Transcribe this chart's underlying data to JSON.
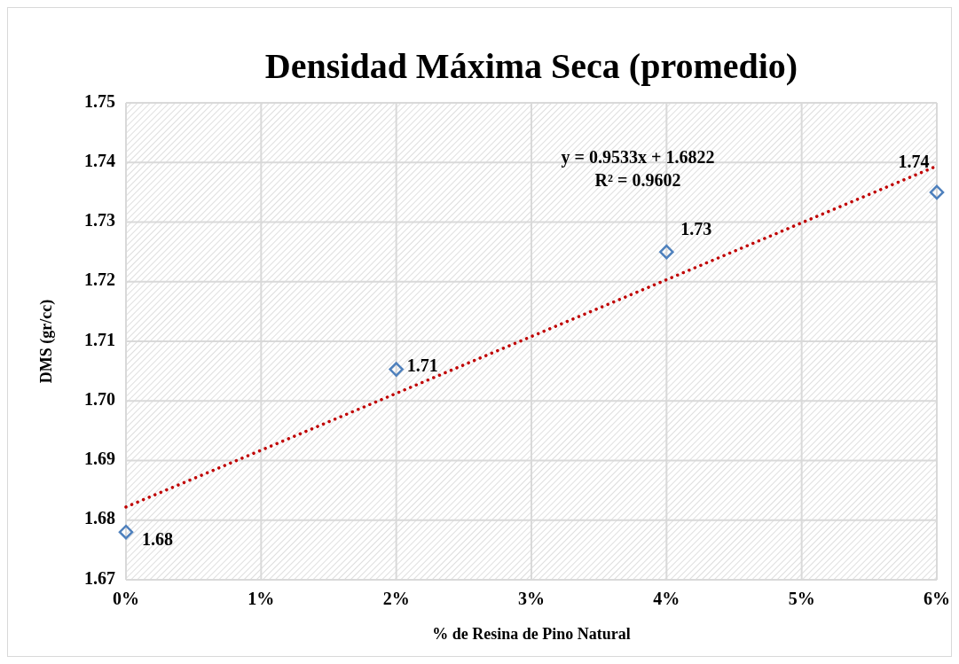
{
  "chart_data": {
    "type": "scatter",
    "title": "Densidad Máxima Seca (promedio)",
    "xlabel": "% de Resina de Pino Natural",
    "ylabel": "DMS (gr/cc)",
    "xlim": [
      0,
      0.06
    ],
    "xticks": [
      {
        "value": 0,
        "label": "0%"
      },
      {
        "value": 0.01,
        "label": "1%"
      },
      {
        "value": 0.02,
        "label": "2%"
      },
      {
        "value": 0.03,
        "label": "3%"
      },
      {
        "value": 0.04,
        "label": "4%"
      },
      {
        "value": 0.05,
        "label": "5%"
      },
      {
        "value": 0.06,
        "label": "6%"
      }
    ],
    "ylim": [
      1.67,
      1.75
    ],
    "yticks": [
      1.67,
      1.68,
      1.69,
      {
        "value": 1.7,
        "label": "1.70"
      },
      1.71,
      1.72,
      1.73,
      1.74,
      1.75
    ],
    "grid": true,
    "series": [
      {
        "color": "#4f81bd",
        "marker": "diamond",
        "x": [
          0,
          0.02,
          0.04,
          0.06
        ],
        "values": [
          1.678,
          1.7053,
          1.725,
          1.735
        ],
        "value_labels": [
          "1.68",
          "1.71",
          "1.73",
          "1.74"
        ]
      },
      {
        "type": "line",
        "color": "#c00000",
        "line_style": "dotted",
        "x": [
          0,
          0.06
        ],
        "values": [
          1.6822,
          1.7394
        ]
      }
    ],
    "annotations": [
      {
        "text": "y = 0.9533x + 1.6822"
      },
      {
        "text": "R² = 0.9602"
      }
    ]
  }
}
